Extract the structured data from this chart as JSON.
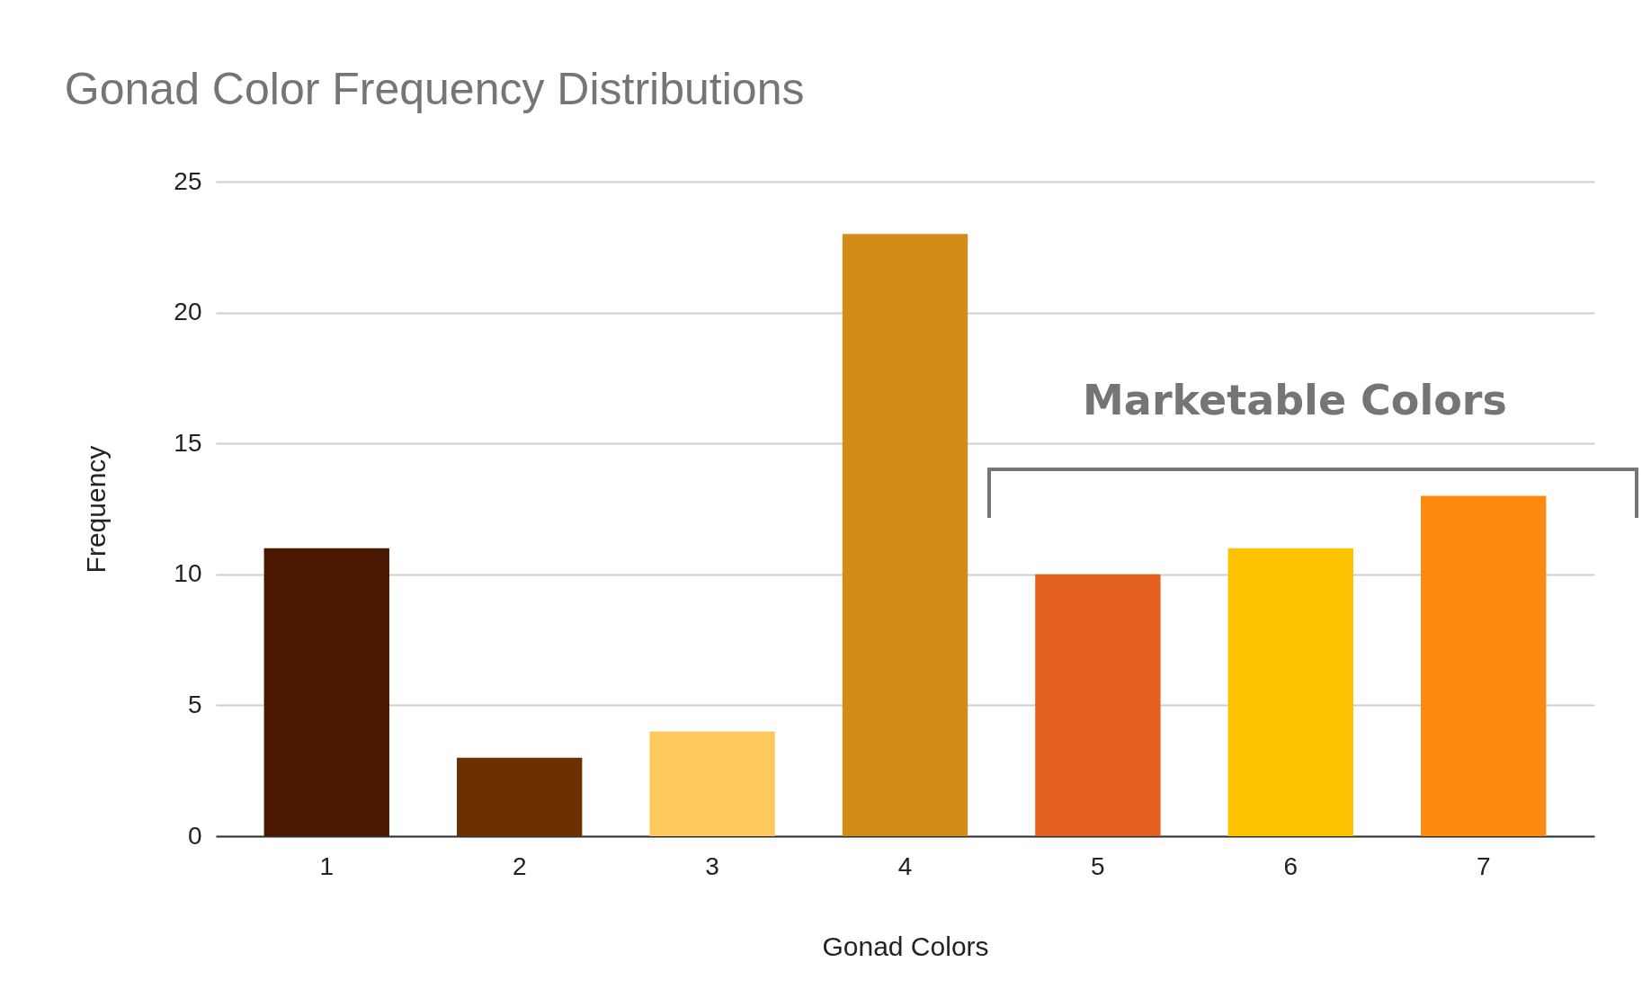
{
  "chart_data": {
    "type": "bar",
    "title": "Gonad Color Frequency Distributions",
    "xlabel": "Gonad Colors",
    "ylabel": "Frequency",
    "categories": [
      "1",
      "2",
      "3",
      "4",
      "5",
      "6",
      "7"
    ],
    "values": [
      11,
      3,
      4,
      23,
      10,
      11,
      13
    ],
    "colors": [
      "#4a1800",
      "#6b3100",
      "#fec95c",
      "#d48c19",
      "#e35f20",
      "#fdc200",
      "#fd8a10"
    ],
    "ylim": [
      0,
      25
    ],
    "yticks": [
      0,
      5,
      10,
      15,
      20,
      25
    ],
    "grid": "y",
    "annotations": [
      "Marketable Colors"
    ]
  }
}
